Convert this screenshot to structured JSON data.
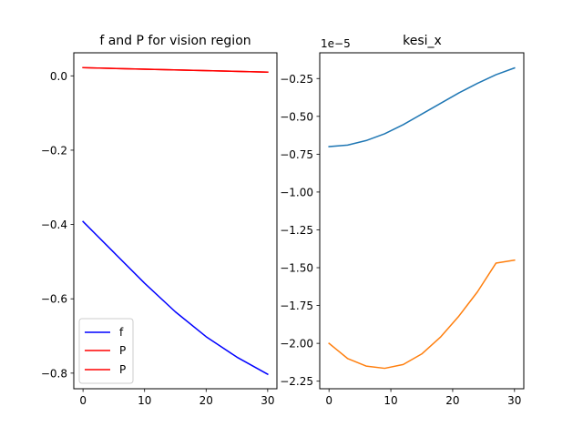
{
  "chart_data": [
    {
      "type": "line",
      "title": "f and P for vision region",
      "xlabel": "",
      "ylabel": "",
      "xlim": [
        -1.5,
        31.5
      ],
      "ylim": [
        -0.842,
        0.062
      ],
      "xticks": [
        0,
        10,
        20,
        30
      ],
      "xtick_labels": [
        "0",
        "10",
        "20",
        "30"
      ],
      "yticks": [
        0.0,
        -0.2,
        -0.4,
        -0.6,
        -0.8
      ],
      "ytick_labels": [
        "0.0",
        "−0.2",
        "−0.4",
        "−0.6",
        "−0.8"
      ],
      "grid": false,
      "legend_position": "lower-left",
      "series": [
        {
          "name": "f",
          "color": "#0000ff",
          "x": [
            0,
            5,
            10,
            15,
            20,
            25,
            30
          ],
          "y": [
            -0.392,
            -0.475,
            -0.558,
            -0.635,
            -0.702,
            -0.757,
            -0.803
          ]
        },
        {
          "name": "P",
          "color": "#ff0000",
          "x": [
            0,
            30
          ],
          "y": [
            0.022,
            0.01
          ]
        },
        {
          "name": "P",
          "color": "#ff0000",
          "x": [
            0,
            30
          ],
          "y": [
            0.022,
            0.01
          ]
        }
      ]
    },
    {
      "type": "line",
      "title": "kesi_x",
      "xlabel": "",
      "ylabel": "",
      "offset_label": "1e−5",
      "xlim": [
        -1.5,
        31.5
      ],
      "ylim": [
        -2.3,
        -0.08
      ],
      "xticks": [
        0,
        10,
        20,
        30
      ],
      "xtick_labels": [
        "0",
        "10",
        "20",
        "30"
      ],
      "yticks": [
        -0.25,
        -0.5,
        -0.75,
        -1.0,
        -1.25,
        -1.5,
        -1.75,
        -2.0,
        -2.25
      ],
      "ytick_labels": [
        "−0.25",
        "−0.50",
        "−0.75",
        "−1.00",
        "−1.25",
        "−1.50",
        "−1.75",
        "−2.00",
        "−2.25"
      ],
      "grid": false,
      "series": [
        {
          "color": "#1f77b4",
          "x": [
            0,
            3,
            6,
            9,
            12,
            15,
            18,
            21,
            24,
            27,
            30
          ],
          "y": [
            -0.7,
            -0.69,
            -0.66,
            -0.615,
            -0.555,
            -0.485,
            -0.415,
            -0.345,
            -0.282,
            -0.225,
            -0.18
          ]
        },
        {
          "color": "#ff7f0e",
          "x": [
            0,
            1.5,
            3,
            6,
            9,
            12,
            15,
            18,
            21,
            24,
            27,
            30
          ],
          "y": [
            -2.0,
            -2.05,
            -2.1,
            -2.15,
            -2.165,
            -2.14,
            -2.07,
            -1.96,
            -1.82,
            -1.66,
            -1.47,
            -1.45
          ]
        }
      ]
    }
  ]
}
